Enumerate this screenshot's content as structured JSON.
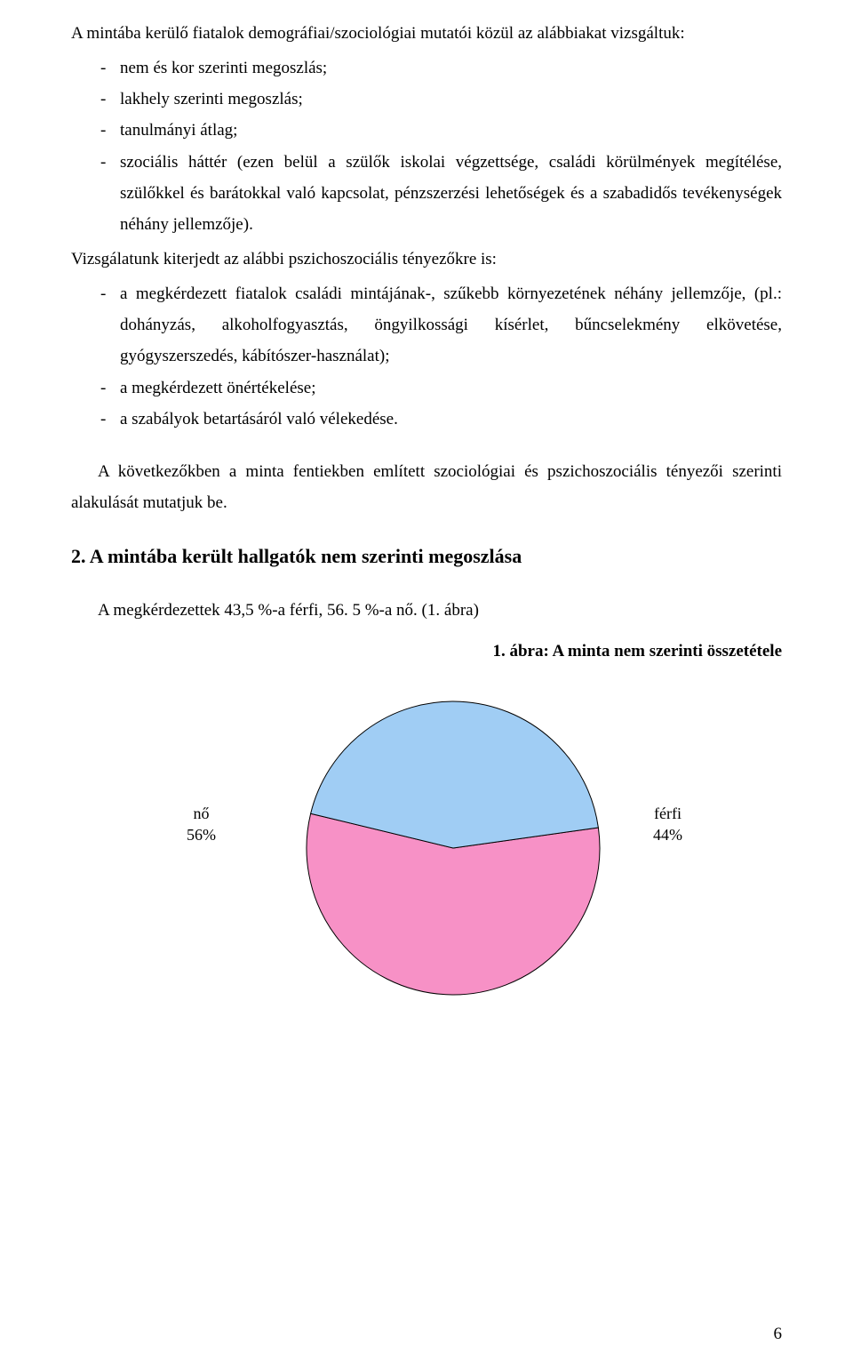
{
  "intro_text": "A mintába kerülő fiatalok demográfiai/szociológiai mutatói közül az alábbiakat vizsgáltuk:",
  "list1": {
    "item1": "nem és kor szerinti megoszlás;",
    "item2": "lakhely szerinti megoszlás;",
    "item3": "tanulmányi átlag;",
    "item4": "szociális háttér (ezen belül a szülők iskolai végzettsége, családi körülmények megítélése, szülőkkel és barátokkal való kapcsolat, pénzszerzési lehetőségek és a szabadidős tevékenységek néhány jellemzője)."
  },
  "body2": "Vizsgálatunk kiterjedt az alábbi pszichoszociális tényezőkre is:",
  "list2": {
    "item1": "a megkérdezett fiatalok családi mintájának-, szűkebb környezetének néhány jellemzője, (pl.: dohányzás, alkoholfogyasztás, öngyilkossági kísérlet, bűncselekmény elkövetése, gyógyszerszedés, kábítószer-használat);",
    "item2": "a megkérdezett önértékelése;",
    "item3": "a szabályok betartásáról való vélekedése."
  },
  "body3": "A következőkben a minta fentiekben említett szociológiai és pszichoszociális tényezői szerinti alakulását mutatjuk be.",
  "section_heading": "2. A mintába került hallgatók nem szerinti megoszlása",
  "body4": "A megkérdezettek 43,5 %-a férfi, 56. 5 %-a nő. (1. ábra)",
  "figure_caption": "1. ábra: A minta nem szerinti összetétele",
  "pie_chart": {
    "type": "pie",
    "radius": 165,
    "stroke_color": "#000000",
    "stroke_width": 1,
    "slices": [
      {
        "label": "nő",
        "percent": 56,
        "color": "#f791c6",
        "start_angle_deg": 82,
        "end_angle_deg": 283.6
      },
      {
        "label": "férfi",
        "percent": 44,
        "color": "#a0cdf4",
        "start_angle_deg": 283.6,
        "end_angle_deg": 442
      }
    ],
    "label_left": {
      "name": "nő",
      "pct": "56%"
    },
    "label_right": {
      "name": "férfi",
      "pct": "44%"
    },
    "label_font_family": "Times New Roman",
    "label_font_size_pt": 14
  },
  "page_number": "6"
}
